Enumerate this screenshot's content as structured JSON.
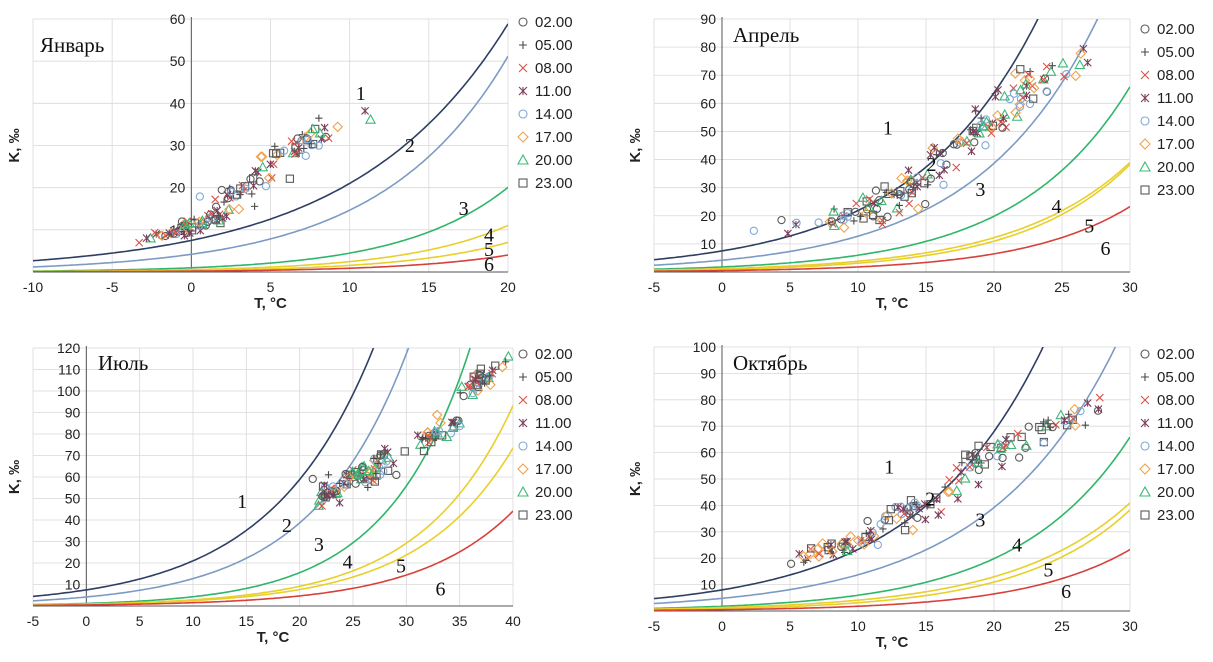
{
  "chart_data": [
    {
      "type": "scatter",
      "title": "Январь",
      "xlabel": "T, °C",
      "ylabel": "K, ‰",
      "xlim": [
        -10,
        20
      ],
      "ylim": [
        0,
        60
      ],
      "xticks": [
        "-10",
        "-5",
        "0",
        "5",
        "10",
        "15",
        "20"
      ],
      "yticks": [
        "",
        "10",
        "20",
        "30",
        "40",
        "50",
        "60"
      ],
      "curves": [
        {
          "label": "1",
          "color": "#2e3f63",
          "a": 7.5,
          "b": 0.103,
          "label_at": [
            10.7,
            40.8
          ]
        },
        {
          "label": "2",
          "color": "#7c9bc4",
          "a": 4.2,
          "b": 0.125,
          "label_at": [
            13.8,
            28.5
          ]
        },
        {
          "label": "3",
          "color": "#2fb66a",
          "a": 1.0,
          "b": 0.15,
          "label_at": [
            17.2,
            13.5
          ]
        },
        {
          "label": "4",
          "color": "#e8cf2a",
          "a": 0.55,
          "b": 0.15,
          "label_at": [
            18.8,
            7.2
          ]
        },
        {
          "label": "5",
          "color": "#e8cf2a",
          "a": 0.35,
          "b": 0.15,
          "label_at": [
            18.8,
            3.8
          ]
        },
        {
          "label": "6",
          "color": "#d8403a",
          "a": 0.2,
          "b": 0.15,
          "label_at": [
            18.8,
            0.2
          ]
        }
      ],
      "clusters": [
        {
          "x": 0.0,
          "y": 11,
          "sx": 1.6,
          "sy": 1.6,
          "n": 60,
          "cov": 1.1
        },
        {
          "x": 3.0,
          "y": 19,
          "sx": 1.6,
          "sy": 3.0,
          "n": 40,
          "cov": 2.0
        },
        {
          "x": 7.0,
          "y": 31,
          "sx": 1.5,
          "sy": 4.0,
          "n": 40,
          "cov": 1.7
        }
      ]
    },
    {
      "type": "scatter",
      "title": "Апрель",
      "xlabel": "T, °C",
      "ylabel": "K, ‰",
      "xlim": [
        -5,
        30
      ],
      "ylim": [
        0,
        90
      ],
      "xticks": [
        "-5",
        "0",
        "5",
        "10",
        "15",
        "20",
        "25",
        "30"
      ],
      "yticks": [
        "",
        "10",
        "20",
        "30",
        "40",
        "50",
        "60",
        "70",
        "80",
        "90"
      ],
      "curves": [
        {
          "label": "1",
          "color": "#2e3f63",
          "a": 7.5,
          "b": 0.107,
          "label_at": [
            12.2,
            49.0
          ]
        },
        {
          "label": "2",
          "color": "#7c9bc4",
          "a": 4.2,
          "b": 0.111,
          "label_at": [
            15.4,
            36.0
          ]
        },
        {
          "label": "3",
          "color": "#2fb66a",
          "a": 1.8,
          "b": 0.12,
          "label_at": [
            19.0,
            27.0
          ]
        },
        {
          "label": "4",
          "color": "#e8cf2a",
          "a": 1.2,
          "b": 0.116,
          "label_at": [
            24.6,
            21.0
          ]
        },
        {
          "label": "5",
          "color": "#e8cf2a",
          "a": 0.9,
          "b": 0.125,
          "label_at": [
            27.0,
            14.0
          ]
        },
        {
          "label": "6",
          "color": "#d8403a",
          "a": 0.5,
          "b": 0.128,
          "label_at": [
            28.2,
            6.0
          ]
        }
      ],
      "clusters": [
        {
          "x": 10.0,
          "y": 20,
          "sx": 2.2,
          "sy": 4.0,
          "n": 40,
          "cov": 1.0
        },
        {
          "x": 13.5,
          "y": 30,
          "sx": 1.6,
          "sy": 5.0,
          "n": 40,
          "cov": 1.5
        },
        {
          "x": 18.0,
          "y": 47,
          "sx": 2.0,
          "sy": 6.0,
          "n": 50,
          "cov": 2.5
        },
        {
          "x": 22.5,
          "y": 66,
          "sx": 2.5,
          "sy": 7.0,
          "n": 40,
          "cov": 2.2
        }
      ]
    },
    {
      "type": "scatter",
      "title": "Июль",
      "xlabel": "T, °C",
      "ylabel": "K, ‰",
      "xlim": [
        -5,
        40
      ],
      "ylim": [
        0,
        120
      ],
      "xticks": [
        "-5",
        "0",
        "5",
        "10",
        "15",
        "20",
        "25",
        "30",
        "35",
        "40"
      ],
      "yticks": [
        "",
        "10",
        "20",
        "30",
        "40",
        "50",
        "60",
        "70",
        "80",
        "90",
        "100",
        "110",
        "120"
      ],
      "curves": [
        {
          "label": "1",
          "color": "#2e3f63",
          "a": 7.5,
          "b": 0.103,
          "label_at": [
            14.6,
            45.5
          ]
        },
        {
          "label": "2",
          "color": "#7c9bc4",
          "a": 4.2,
          "b": 0.111,
          "label_at": [
            18.8,
            34.5
          ]
        },
        {
          "label": "3",
          "color": "#2fb66a",
          "a": 1.2,
          "b": 0.128,
          "label_at": [
            21.8,
            25.5
          ]
        },
        {
          "label": "4",
          "color": "#e8cf2a",
          "a": 0.9,
          "b": 0.116,
          "label_at": [
            24.5,
            17.5
          ]
        },
        {
          "label": "5",
          "color": "#e8cf2a",
          "a": 0.8,
          "b": 0.113,
          "label_at": [
            29.5,
            15.5
          ]
        },
        {
          "label": "6",
          "color": "#d8403a",
          "a": 0.5,
          "b": 0.112,
          "label_at": [
            33.2,
            5.0
          ]
        }
      ],
      "clusters": [
        {
          "x": 22.5,
          "y": 52,
          "sx": 0.7,
          "sy": 3.5,
          "n": 25,
          "cov": 0.5
        },
        {
          "x": 25.5,
          "y": 60,
          "sx": 1.5,
          "sy": 5.0,
          "n": 45,
          "cov": 0.8
        },
        {
          "x": 27.5,
          "y": 67,
          "sx": 0.8,
          "sy": 5.0,
          "n": 25,
          "cov": 0.5
        },
        {
          "x": 32.5,
          "y": 80,
          "sx": 1.5,
          "sy": 5.0,
          "n": 40,
          "cov": 2.5
        },
        {
          "x": 36.5,
          "y": 104,
          "sx": 1.2,
          "sy": 5.0,
          "n": 40,
          "cov": 3.0
        }
      ]
    },
    {
      "type": "scatter",
      "title": "Октябрь",
      "xlabel": "T, °C",
      "ylabel": "K, ‰",
      "xlim": [
        -5,
        30
      ],
      "ylim": [
        0,
        100
      ],
      "xticks": [
        "-5",
        "0",
        "5",
        "10",
        "15",
        "20",
        "25",
        "30"
      ],
      "yticks": [
        "",
        "10",
        "20",
        "30",
        "40",
        "50",
        "60",
        "70",
        "80",
        "90",
        "100"
      ],
      "curves": [
        {
          "label": "1",
          "color": "#2e3f63",
          "a": 8.0,
          "b": 0.107,
          "label_at": [
            12.3,
            52.0
          ]
        },
        {
          "label": "2",
          "color": "#7c9bc4",
          "a": 4.8,
          "b": 0.105,
          "label_at": [
            15.3,
            40.0
          ]
        },
        {
          "label": "3",
          "color": "#2fb66a",
          "a": 1.8,
          "b": 0.12,
          "label_at": [
            19.0,
            32.0
          ]
        },
        {
          "label": "4",
          "color": "#e8cf2a",
          "a": 1.3,
          "b": 0.115,
          "label_at": [
            21.7,
            22.5
          ]
        },
        {
          "label": "5",
          "color": "#e8cf2a",
          "a": 0.9,
          "b": 0.125,
          "label_at": [
            24.0,
            13.0
          ]
        },
        {
          "label": "6",
          "color": "#d8403a",
          "a": 0.5,
          "b": 0.128,
          "label_at": [
            25.3,
            5.0
          ]
        }
      ],
      "clusters": [
        {
          "x": 8.5,
          "y": 24,
          "sx": 2.0,
          "sy": 3.5,
          "n": 45,
          "cov": 1.3
        },
        {
          "x": 13.5,
          "y": 38,
          "sx": 1.8,
          "sy": 5.0,
          "n": 45,
          "cov": 2.2
        },
        {
          "x": 19.5,
          "y": 58,
          "sx": 2.0,
          "sy": 6.0,
          "n": 40,
          "cov": 2.5
        },
        {
          "x": 24.5,
          "y": 71,
          "sx": 1.8,
          "sy": 6.0,
          "n": 30,
          "cov": 2.2
        }
      ]
    }
  ],
  "legend": {
    "entries": [
      {
        "label": "02.00",
        "marker": "circle",
        "color": "#5a5a5a"
      },
      {
        "label": "05.00",
        "marker": "plus",
        "color": "#4a4a4a"
      },
      {
        "label": "08.00",
        "marker": "x",
        "color": "#d9534a"
      },
      {
        "label": "11.00",
        "marker": "star",
        "color": "#7a3e5a"
      },
      {
        "label": "14.00",
        "marker": "circle",
        "color": "#7fa8d8"
      },
      {
        "label": "17.00",
        "marker": "diamond",
        "color": "#f0a24a"
      },
      {
        "label": "20.00",
        "marker": "triangle",
        "color": "#3cb878"
      },
      {
        "label": "23.00",
        "marker": "square",
        "color": "#5a5a5a"
      }
    ]
  }
}
